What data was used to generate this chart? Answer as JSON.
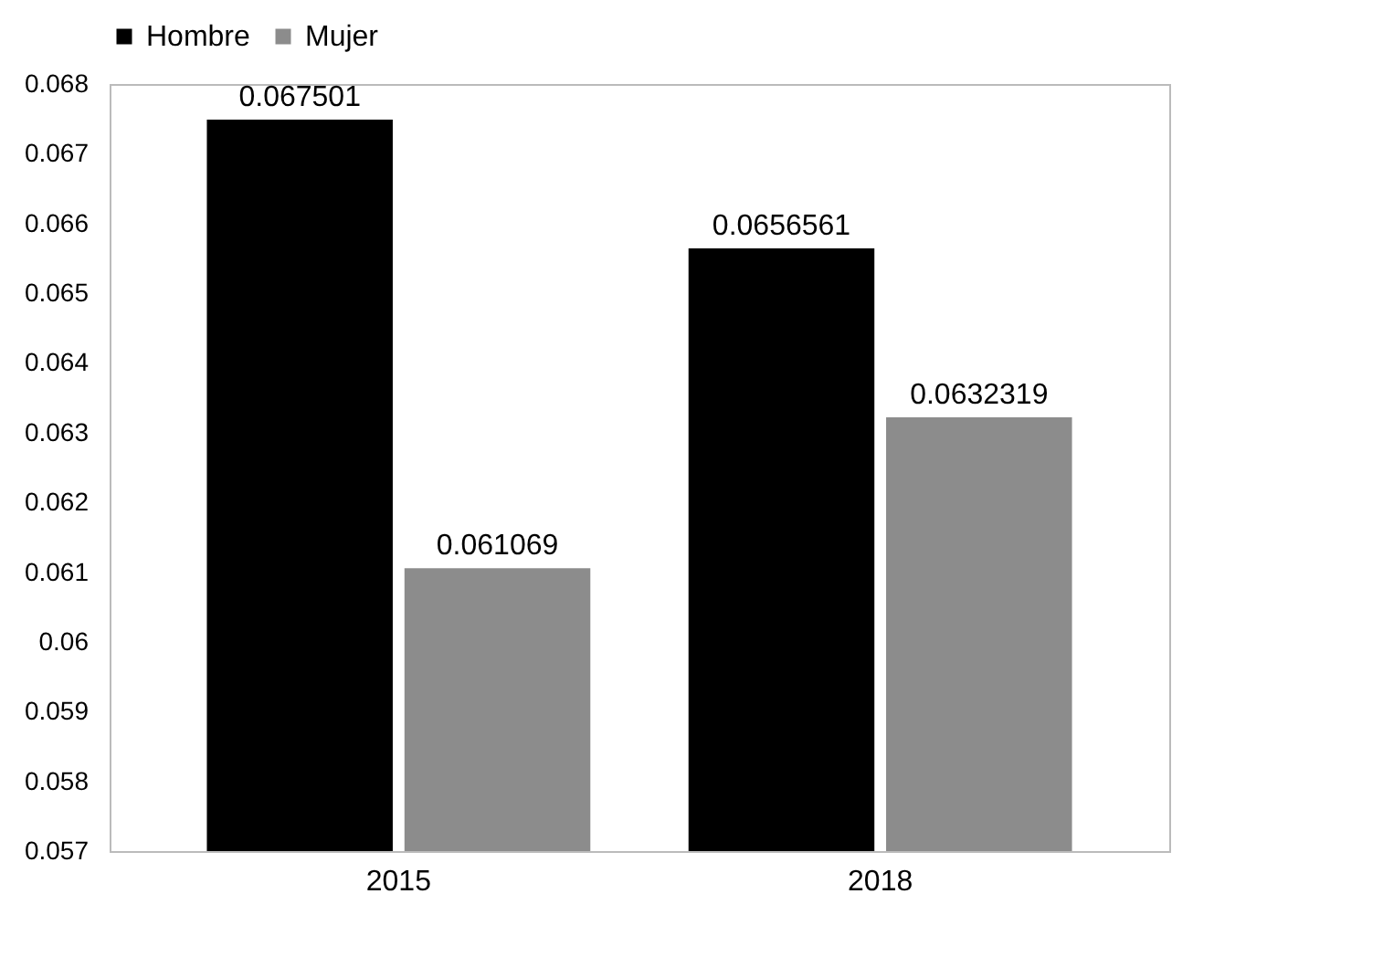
{
  "chart_data": {
    "type": "bar",
    "categories": [
      "2015",
      "2018"
    ],
    "series": [
      {
        "name": "Hombre",
        "color": "#000000",
        "values": [
          0.067501,
          0.0656561
        ]
      },
      {
        "name": "Mujer",
        "color": "#8c8c8c",
        "values": [
          0.061069,
          0.0632319
        ]
      }
    ],
    "ylim": [
      0.057,
      0.068
    ],
    "yticks": [
      0.057,
      0.058,
      0.059,
      0.06,
      0.061,
      0.062,
      0.063,
      0.064,
      0.065,
      0.066,
      0.067,
      0.068
    ],
    "data_labels": true,
    "legend": "top",
    "grid": false
  }
}
